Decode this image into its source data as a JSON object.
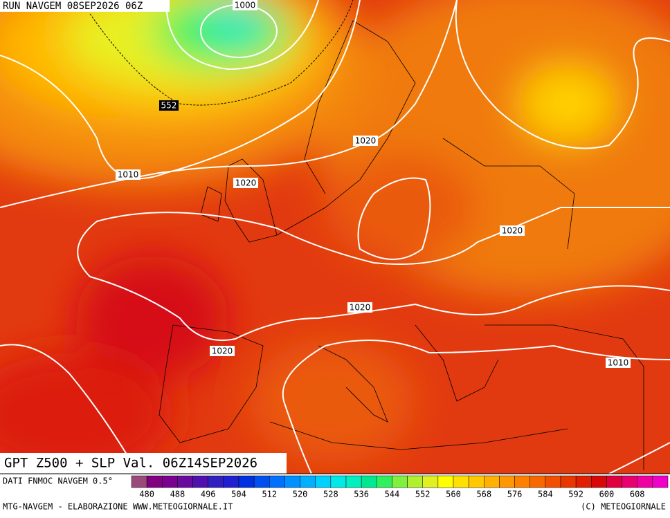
{
  "header": {
    "run": "RUN NAVGEM 08SEP2026 06Z"
  },
  "map": {
    "title": "GPT Z500 + SLP Val. 06Z14SEP2026",
    "contour_labels": [
      "1000",
      "552",
      "1010",
      "1020",
      "1020",
      "1020",
      "1020",
      "1020",
      "1010"
    ]
  },
  "colorbar": {
    "caption": "DATI FNMOC NAVGEM 0.5°",
    "colors": [
      "#9a4a7a",
      "#800080",
      "#7a0090",
      "#6a0aa0",
      "#5010b0",
      "#3020c0",
      "#2020d0",
      "#0030e0",
      "#0050f0",
      "#0070ff",
      "#0090ff",
      "#00b0ff",
      "#00d0ff",
      "#00e8e8",
      "#00f0c0",
      "#00e890",
      "#30f060",
      "#80f040",
      "#b0f030",
      "#e0f020",
      "#ffff00",
      "#ffe000",
      "#ffc800",
      "#ffb000",
      "#ff9800",
      "#ff8000",
      "#f86800",
      "#f05000",
      "#e83800",
      "#e02000",
      "#d80808",
      "#e00040",
      "#e80070",
      "#f000a0",
      "#f000c8"
    ],
    "labels": [
      480,
      488,
      496,
      504,
      512,
      520,
      528,
      536,
      544,
      552,
      560,
      568,
      576,
      584,
      592,
      600,
      608
    ]
  },
  "footer": {
    "left": "MTG-NAVGEM - ELABORAZIONE WWW.METEOGIORNALE.IT",
    "right": "(C) METEOGIORNALE"
  }
}
